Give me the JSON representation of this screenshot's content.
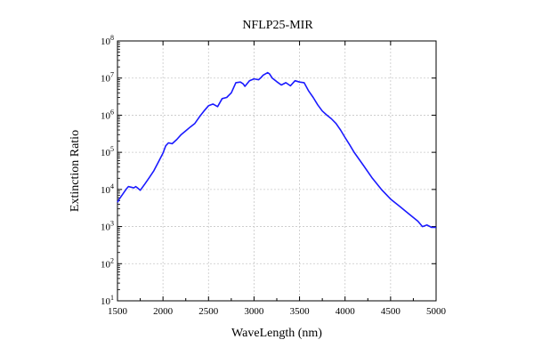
{
  "chart_data": {
    "type": "line",
    "title": "NFLP25-MIR",
    "xlabel": "WaveLength (nm)",
    "ylabel": "Extinction Ratio",
    "xlim": [
      1500,
      5000
    ],
    "ylim_log10": [
      1,
      8
    ],
    "yscale": "log",
    "x_ticks": [
      1500,
      2000,
      2500,
      3000,
      3500,
      4000,
      4500,
      5000
    ],
    "y_ticks": [
      {
        "base": "10",
        "exp": "1"
      },
      {
        "base": "10",
        "exp": "2"
      },
      {
        "base": "10",
        "exp": "3"
      },
      {
        "base": "10",
        "exp": "4"
      },
      {
        "base": "10",
        "exp": "5"
      },
      {
        "base": "10",
        "exp": "6"
      },
      {
        "base": "10",
        "exp": "7"
      },
      {
        "base": "10",
        "exp": "8"
      }
    ],
    "grid": true,
    "line_color": "#1a1aff",
    "series": [
      {
        "x": [
          1500,
          1520,
          1550,
          1580,
          1600,
          1620,
          1650,
          1680,
          1700,
          1720,
          1750,
          1800,
          1850,
          1900,
          1950,
          2000,
          2030,
          2060,
          2100,
          2150,
          2200,
          2250,
          2300,
          2350,
          2400,
          2450,
          2500,
          2550,
          2600,
          2650,
          2700,
          2750,
          2800,
          2850,
          2880,
          2900,
          2950,
          3000,
          3050,
          3080,
          3100,
          3150,
          3170,
          3200,
          3250,
          3300,
          3350,
          3400,
          3450,
          3500,
          3550,
          3600,
          3650,
          3700,
          3750,
          3800,
          3850,
          3900,
          3950,
          4000,
          4050,
          4100,
          4200,
          4300,
          4400,
          4500,
          4600,
          4700,
          4800,
          4850,
          4900,
          4950,
          5000
        ],
        "y": [
          4500,
          5500,
          7000,
          9000,
          10500,
          12000,
          11500,
          11000,
          12000,
          11000,
          9500,
          14000,
          21000,
          32000,
          55000,
          95000,
          150000,
          180000,
          170000,
          220000,
          300000,
          380000,
          480000,
          600000,
          900000,
          1300000,
          1800000,
          2000000,
          1700000,
          2800000,
          3000000,
          4000000,
          7500000,
          7800000,
          7000000,
          6000000,
          8500000,
          9500000,
          9000000,
          10500000,
          12000000,
          14000000,
          13000000,
          10000000,
          8000000,
          6500000,
          7500000,
          6200000,
          8500000,
          7800000,
          7500000,
          4500000,
          3000000,
          1900000,
          1300000,
          1000000,
          800000,
          600000,
          400000,
          250000,
          160000,
          100000,
          45000,
          20000,
          10000,
          5500,
          3500,
          2200,
          1400,
          1000,
          1100,
          950,
          950
        ]
      }
    ]
  }
}
